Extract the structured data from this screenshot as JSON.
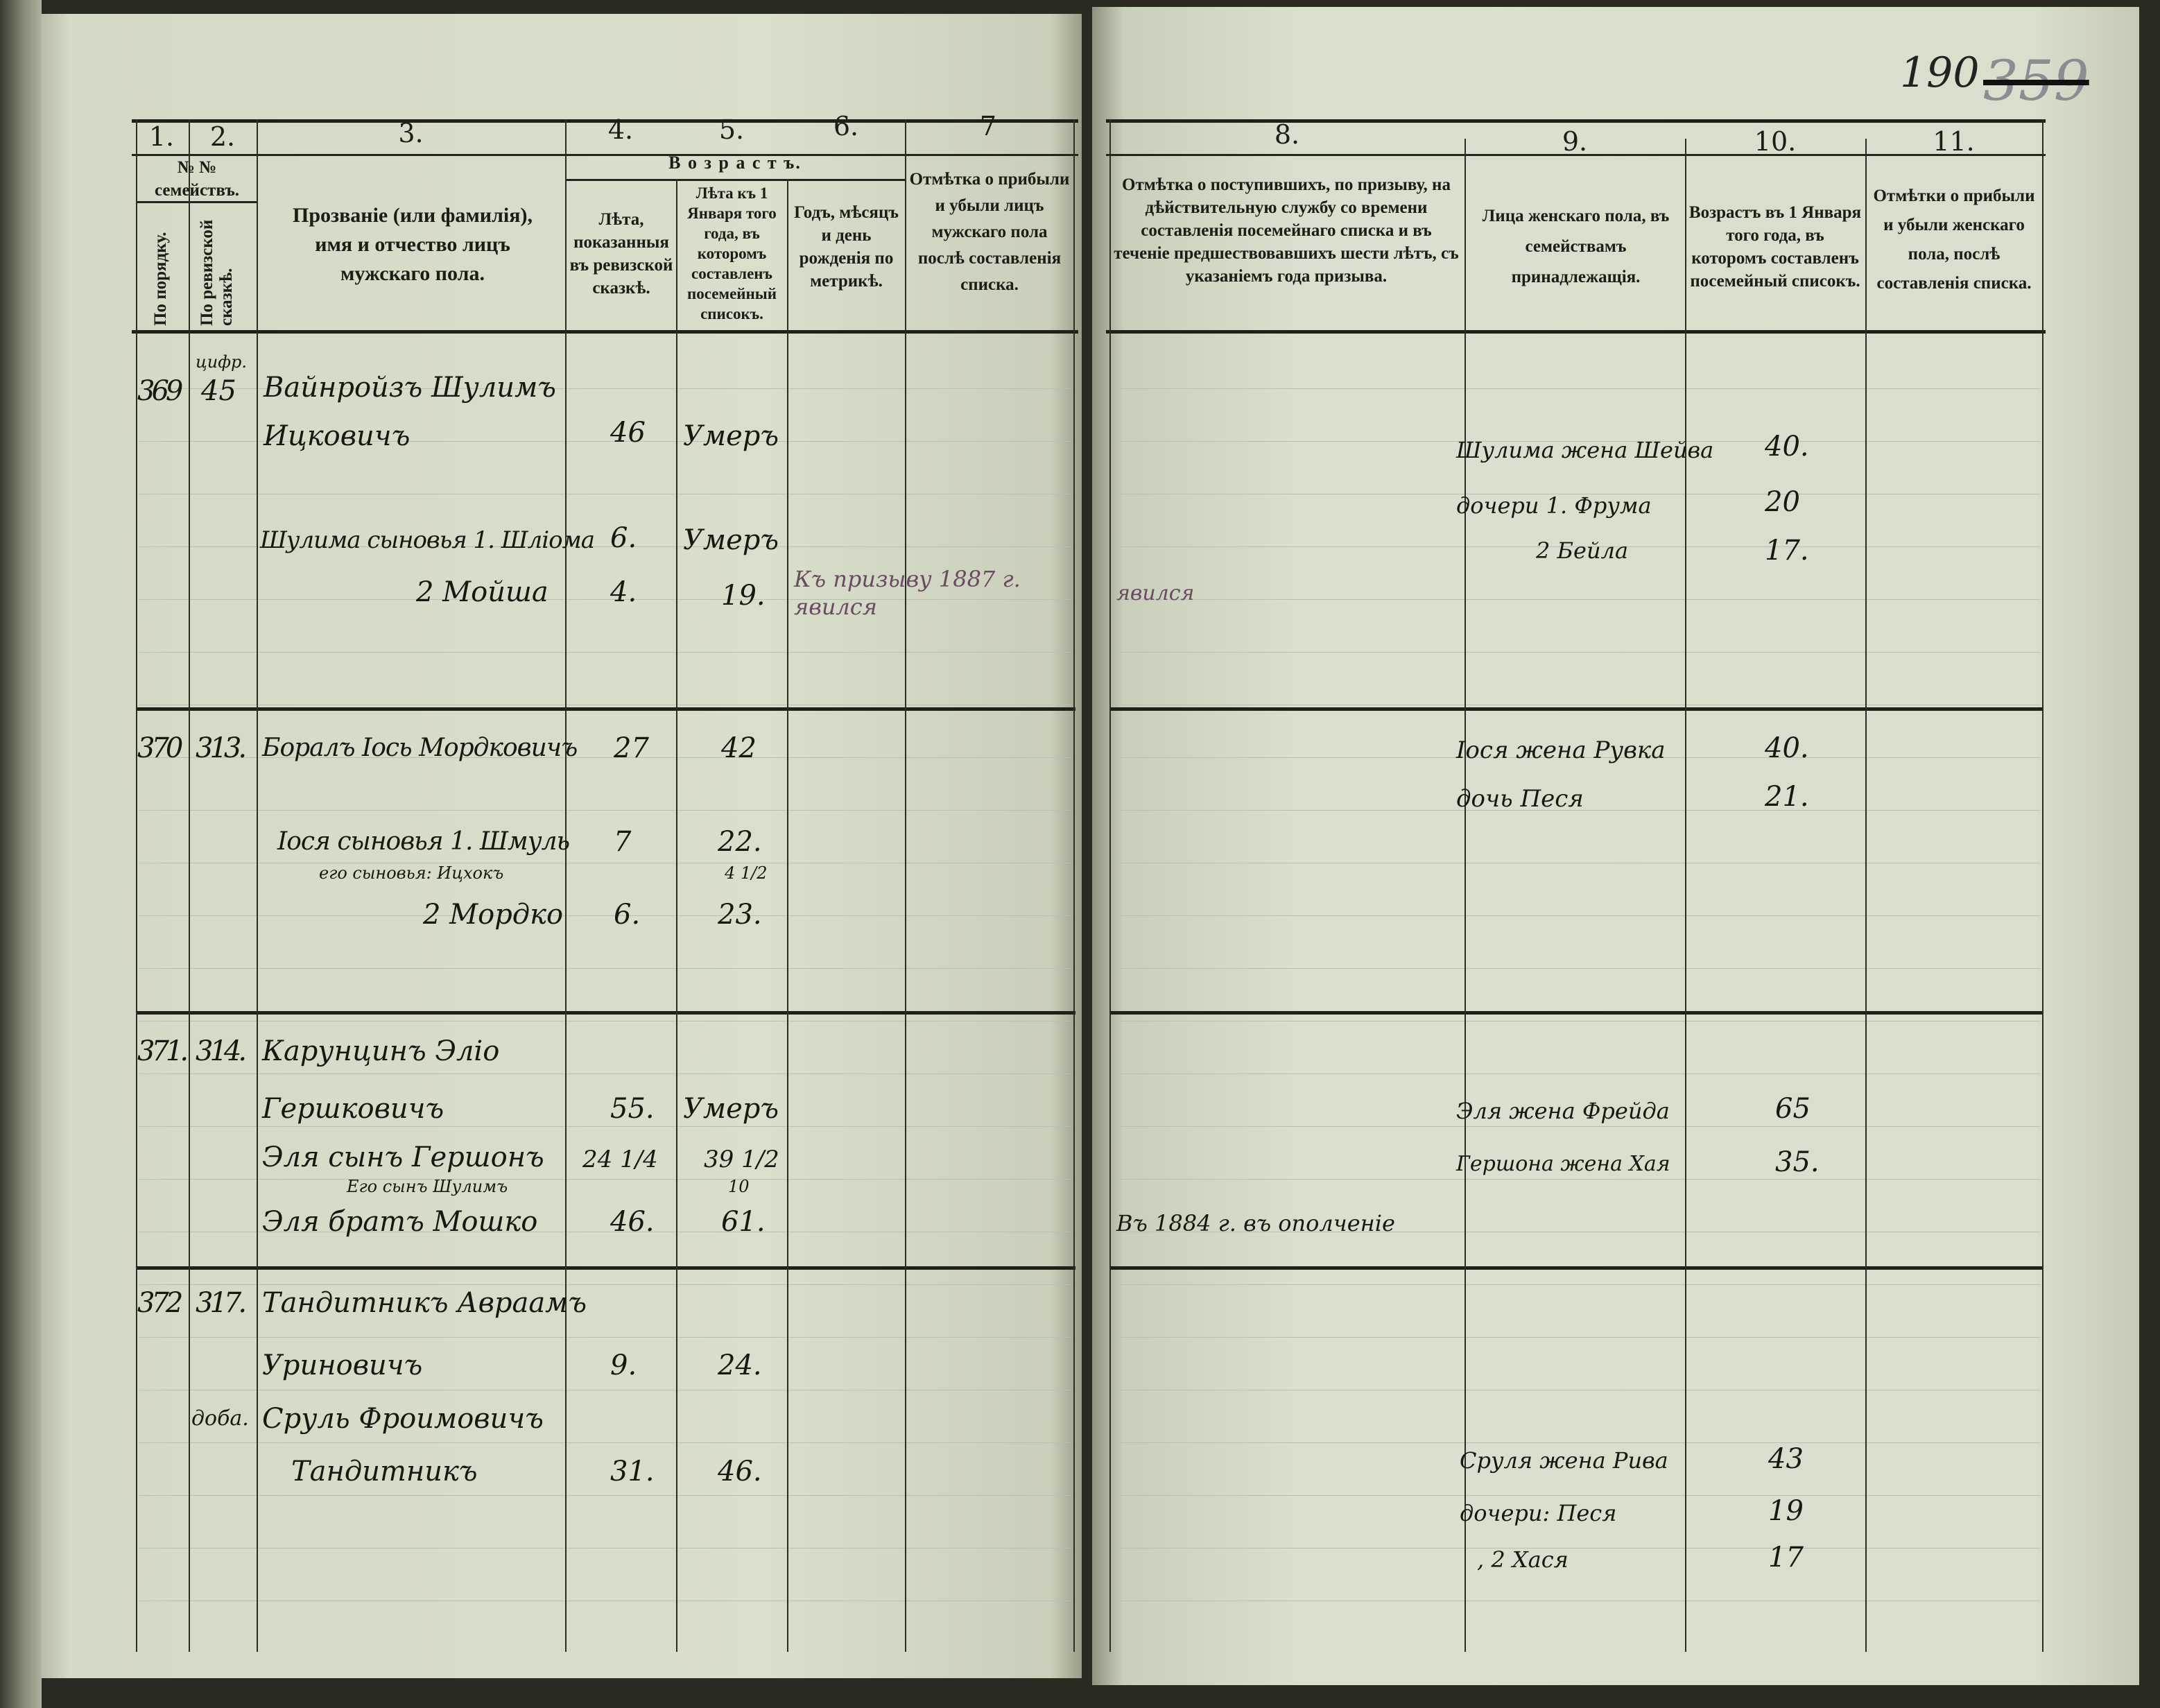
{
  "page_numbers": {
    "current": "190",
    "old": "359"
  },
  "left_header": {
    "col_numbers": [
      "1.",
      "2.",
      "3.",
      "4.",
      "5.",
      "6.",
      "7"
    ],
    "families_label": "№ №\nсемействъ.",
    "col1": "По порядку.",
    "col2": "По ревизской сказкѣ.",
    "col3": "Прозваніе (или фамилія), имя и отчество лицъ мужскаго пола.",
    "age_group": "В о з р а с т ъ.",
    "col4": "Лѣта, показанныя въ ревизской сказкѣ.",
    "col5": "Лѣта къ 1 Января того года, въ которомъ составленъ посемейный списокъ.",
    "col6": "Годъ, мѣсяцъ и день рожденія по метрикѣ.",
    "col7": "Отмѣтка о прибыли и убыли лицъ мужскаго пола послѣ составленія списка."
  },
  "right_header": {
    "col_numbers": [
      "8.",
      "9.",
      "10.",
      "11."
    ],
    "col8": "Отмѣтка о поступившихъ, по призыву, на дѣйствительную службу со времени составленія посемейнаго списка и въ теченіе предшествовавшихъ шести лѣтъ, съ указаніемъ года призыва.",
    "col9": "Лица женскаго пола, въ семействамъ принадлежащія.",
    "col10": "Возрастъ въ 1 Января того года, въ которомъ составленъ посемейный списокъ.",
    "col11": "Отмѣтки о прибыли и убыли женскаго пола, послѣ составленія списка."
  },
  "families": [
    {
      "no": "369",
      "revision": "45",
      "revision_note": "цифр.",
      "males": [
        {
          "name": "Вайнройзъ Шулимъ",
          "cont": "Ицковичъ",
          "age_rev": "46",
          "age_list": "Умеръ"
        },
        {
          "name": "Шулима сыновья 1. Шліома",
          "age_rev": "6.",
          "age_list": "Умеръ"
        },
        {
          "name": "2 Мойша",
          "age_rev": "4.",
          "age_list": "19.",
          "note7": "Къ призыву 1887 г. явился",
          "note8": "явился"
        }
      ],
      "females": [
        {
          "name": "Шулима жена Шейва",
          "age": "40."
        },
        {
          "name": "дочери 1. Фрума",
          "age": "20"
        },
        {
          "name": "2 Бейла",
          "age": "17."
        }
      ]
    },
    {
      "no": "370",
      "revision": "313.",
      "males": [
        {
          "name": "Боралъ Іось Мордковичъ",
          "age_rev": "27",
          "age_list": "42"
        },
        {
          "name": "Іося сыновья 1. Шмуль",
          "age_rev": "7",
          "age_list": "22."
        },
        {
          "name": "его сыновья: Ицхокъ",
          "age_list": "4 1/2"
        },
        {
          "name": "2 Мордко",
          "age_rev": "6.",
          "age_list": "23."
        }
      ],
      "females": [
        {
          "name": "Іося жена Рувка",
          "age": "40."
        },
        {
          "name": "дочь Песя",
          "age": "21."
        }
      ]
    },
    {
      "no": "371.",
      "revision": "314.",
      "males": [
        {
          "name": "Карунцинъ Эліо",
          "cont": "Гершковичъ",
          "age_rev": "55.",
          "age_list": "Умеръ"
        },
        {
          "name": "Эля сынъ Гершонъ",
          "age_rev": "24 1/4",
          "age_list": "39 1/2"
        },
        {
          "name": "Его сынъ Шулимъ",
          "age_list": "10"
        },
        {
          "name": "Эля братъ Мошко",
          "age_rev": "46.",
          "age_list": "61.",
          "note8": "Въ 1884 г. въ ополченіе"
        }
      ],
      "females": [
        {
          "name": "Эля жена Фрейда",
          "age": "65"
        },
        {
          "name": "Гершона жена Хая",
          "age": "35."
        }
      ]
    },
    {
      "no": "372",
      "revision": "317.",
      "males": [
        {
          "name": "Тандитникъ Авраамъ",
          "cont": "Уриновичъ",
          "age_rev": "9.",
          "age_list": "24."
        },
        {
          "name": "Сруль Фроимовичъ",
          "cont": "Тандитникъ",
          "age_rev": "31.",
          "age_list": "46.",
          "revision_note": "доба."
        }
      ],
      "females": [
        {
          "name": "Сруля жена Рива",
          "age": "43"
        },
        {
          "name": "дочери: Песя",
          "age": "19"
        },
        {
          "name": ", 2 Хася",
          "age": "17"
        }
      ]
    }
  ]
}
